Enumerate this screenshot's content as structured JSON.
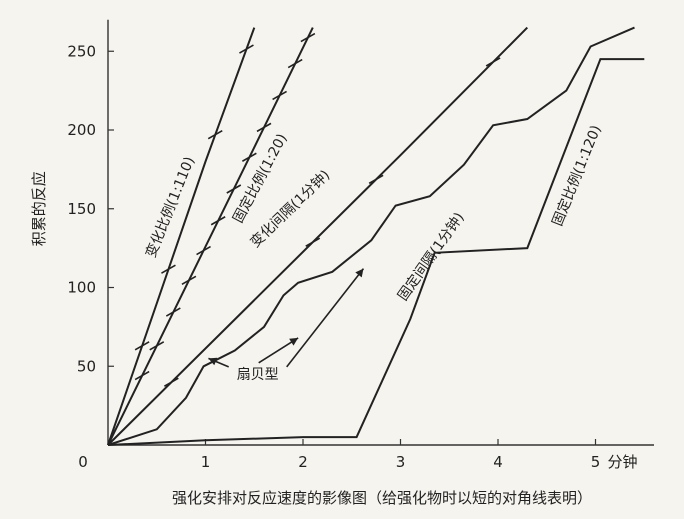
{
  "chart_data": {
    "type": "line",
    "title": "",
    "xlabel": "强化安排对反应速度的影像图（给强化物时以短的对角线表明）",
    "ylabel": "积累的反应",
    "x_unit_label": "分钟",
    "xlim": [
      0,
      5.6
    ],
    "ylim": [
      0,
      270
    ],
    "x_ticks": [
      0,
      1,
      2,
      3,
      4,
      5
    ],
    "x_tick_labels": [
      "0",
      "1",
      "2",
      "3",
      "4",
      "5"
    ],
    "y_ticks": [
      50,
      100,
      150,
      200,
      250
    ],
    "y_tick_labels": [
      "50",
      "100",
      "150",
      "200",
      "250"
    ],
    "grid": false,
    "series": [
      {
        "name": "变化比例(1:110)",
        "x": [
          0,
          0.5,
          1.0,
          1.5
        ],
        "y": [
          0,
          90,
          180,
          265
        ],
        "reinforcements_x": [
          0.35,
          0.62,
          1.1,
          1.42
        ]
      },
      {
        "name": "固定比例(1:20)",
        "x": [
          0,
          0.5,
          1.0,
          1.5,
          2.1
        ],
        "y": [
          0,
          63,
          126,
          189,
          265
        ],
        "reinforcements_x": [
          0.35,
          0.5,
          0.67,
          0.83,
          0.98,
          1.13,
          1.29,
          1.45,
          1.6,
          1.76,
          1.92,
          2.05
        ]
      },
      {
        "name": "变化间隔(1分钟)",
        "x": [
          0,
          1.5,
          3.0,
          4.3
        ],
        "y": [
          0,
          92,
          184,
          265
        ],
        "reinforcements_x": [
          0.65,
          2.1,
          2.75,
          3.95
        ]
      },
      {
        "name": "固定间隔(1分钟)",
        "x": [
          0,
          0.5,
          0.8,
          0.98,
          1.3,
          1.6,
          1.8,
          1.95,
          2.3,
          2.7,
          2.95,
          3.3,
          3.65,
          3.95,
          4.3,
          4.7,
          4.95,
          5.4
        ],
        "y": [
          0,
          10,
          30,
          50,
          60,
          75,
          95,
          103,
          110,
          130,
          152,
          158,
          178,
          203,
          207,
          225,
          253,
          265
        ],
        "reinforcements_x": []
      },
      {
        "name": "固定比例(1:120)",
        "x": [
          0,
          1.0,
          2.0,
          2.55,
          3.1,
          3.35,
          4.3,
          5.05,
          5.5
        ],
        "y": [
          0,
          3,
          5,
          5,
          80,
          122,
          125,
          245,
          245
        ],
        "reinforcements_x": []
      }
    ],
    "annotations": [
      {
        "text": "扇贝型",
        "x": 1.32,
        "y": 42
      }
    ]
  }
}
